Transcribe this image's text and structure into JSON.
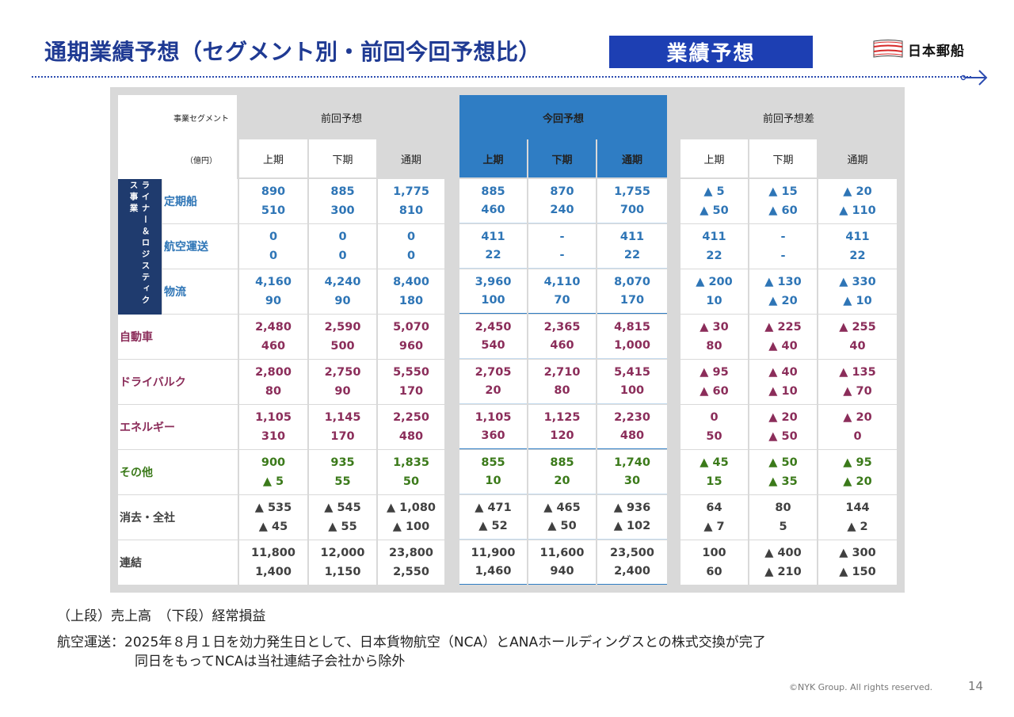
{
  "header": {
    "title": "通期業績予想（セグメント別・前回今回予想比）",
    "badge": "業績予想",
    "logo_text": "日本郵船",
    "logo_icon": "nyk-flag-icon",
    "arrow_icon": "arrow-right-icon"
  },
  "table": {
    "seg_header": "事業セグメント",
    "unit": "（億円）",
    "groups": [
      "前回予想",
      "今回予想",
      "前回予想差"
    ],
    "periods": [
      "上期",
      "下期",
      "通期"
    ],
    "liner_group_label": "ライナー＆ロジスティクス事業",
    "rows": [
      {
        "label": "定期船",
        "top": [
          "890",
          "885",
          "1,775",
          "885",
          "870",
          "1,755",
          "▲ 5",
          "▲ 15",
          "▲ 20"
        ],
        "bottom": [
          "510",
          "300",
          "810",
          "460",
          "240",
          "700",
          "▲ 50",
          "▲ 60",
          "▲ 110"
        ]
      },
      {
        "label": "航空運送",
        "top": [
          "0",
          "0",
          "0",
          "411",
          "-",
          "411",
          "411",
          "-",
          "411"
        ],
        "bottom": [
          "0",
          "0",
          "0",
          "22",
          "-",
          "22",
          "22",
          "-",
          "22"
        ]
      },
      {
        "label": "物流",
        "top": [
          "4,160",
          "4,240",
          "8,400",
          "3,960",
          "4,110",
          "8,070",
          "▲ 200",
          "▲ 130",
          "▲ 330"
        ],
        "bottom": [
          "90",
          "90",
          "180",
          "100",
          "70",
          "170",
          "10",
          "▲ 20",
          "▲ 10"
        ]
      },
      {
        "label": "自動車",
        "top": [
          "2,480",
          "2,590",
          "5,070",
          "2,450",
          "2,365",
          "4,815",
          "▲ 30",
          "▲ 225",
          "▲ 255"
        ],
        "bottom": [
          "460",
          "500",
          "960",
          "540",
          "460",
          "1,000",
          "80",
          "▲ 40",
          "40"
        ]
      },
      {
        "label": "ドライバルク",
        "top": [
          "2,800",
          "2,750",
          "5,550",
          "2,705",
          "2,710",
          "5,415",
          "▲ 95",
          "▲ 40",
          "▲ 135"
        ],
        "bottom": [
          "80",
          "90",
          "170",
          "20",
          "80",
          "100",
          "▲ 60",
          "▲ 10",
          "▲ 70"
        ]
      },
      {
        "label": "エネルギー",
        "top": [
          "1,105",
          "1,145",
          "2,250",
          "1,105",
          "1,125",
          "2,230",
          "0",
          "▲ 20",
          "▲ 20"
        ],
        "bottom": [
          "310",
          "170",
          "480",
          "360",
          "120",
          "480",
          "50",
          "▲ 50",
          "0"
        ]
      },
      {
        "label": "その他",
        "top": [
          "900",
          "935",
          "1,835",
          "855",
          "885",
          "1,740",
          "▲ 45",
          "▲ 50",
          "▲ 95"
        ],
        "bottom": [
          "▲ 5",
          "55",
          "50",
          "10",
          "20",
          "30",
          "15",
          "▲ 35",
          "▲ 20"
        ]
      },
      {
        "label": "消去・全社",
        "top": [
          "▲ 535",
          "▲ 545",
          "▲ 1,080",
          "▲ 471",
          "▲ 465",
          "▲ 936",
          "64",
          "80",
          "144"
        ],
        "bottom": [
          "▲ 45",
          "▲ 55",
          "▲ 100",
          "▲ 52",
          "▲ 50",
          "▲ 102",
          "▲ 7",
          "5",
          "▲ 2"
        ]
      },
      {
        "label": "連結",
        "top": [
          "11,800",
          "12,000",
          "23,800",
          "11,900",
          "11,600",
          "23,500",
          "100",
          "▲ 400",
          "▲ 300"
        ],
        "bottom": [
          "1,400",
          "1,150",
          "2,550",
          "1,460",
          "940",
          "2,400",
          "60",
          "▲ 210",
          "▲ 150"
        ]
      }
    ]
  },
  "colors": {
    "liner": "#2e75b6",
    "automotive": "#8b2d5a",
    "drybulk": "#8b2d5a",
    "energy": "#8b2d5a",
    "other": "#3b7a1a",
    "corporate": "#404040",
    "header_blue": "#2f7dc4",
    "title_blue": "#1f3a93"
  },
  "notes": {
    "legend": "（上段）売上高　（下段）経常損益",
    "air_line1": "航空運送：2025年８月１日を効力発生日として、日本貨物航空（NCA）とANAホールディングスとの株式交換が完了",
    "air_line2": "同日をもってNCAは当社連結子会社から除外"
  },
  "footer": {
    "copyright": "©NYK Group. All rights reserved.",
    "page": "14"
  }
}
